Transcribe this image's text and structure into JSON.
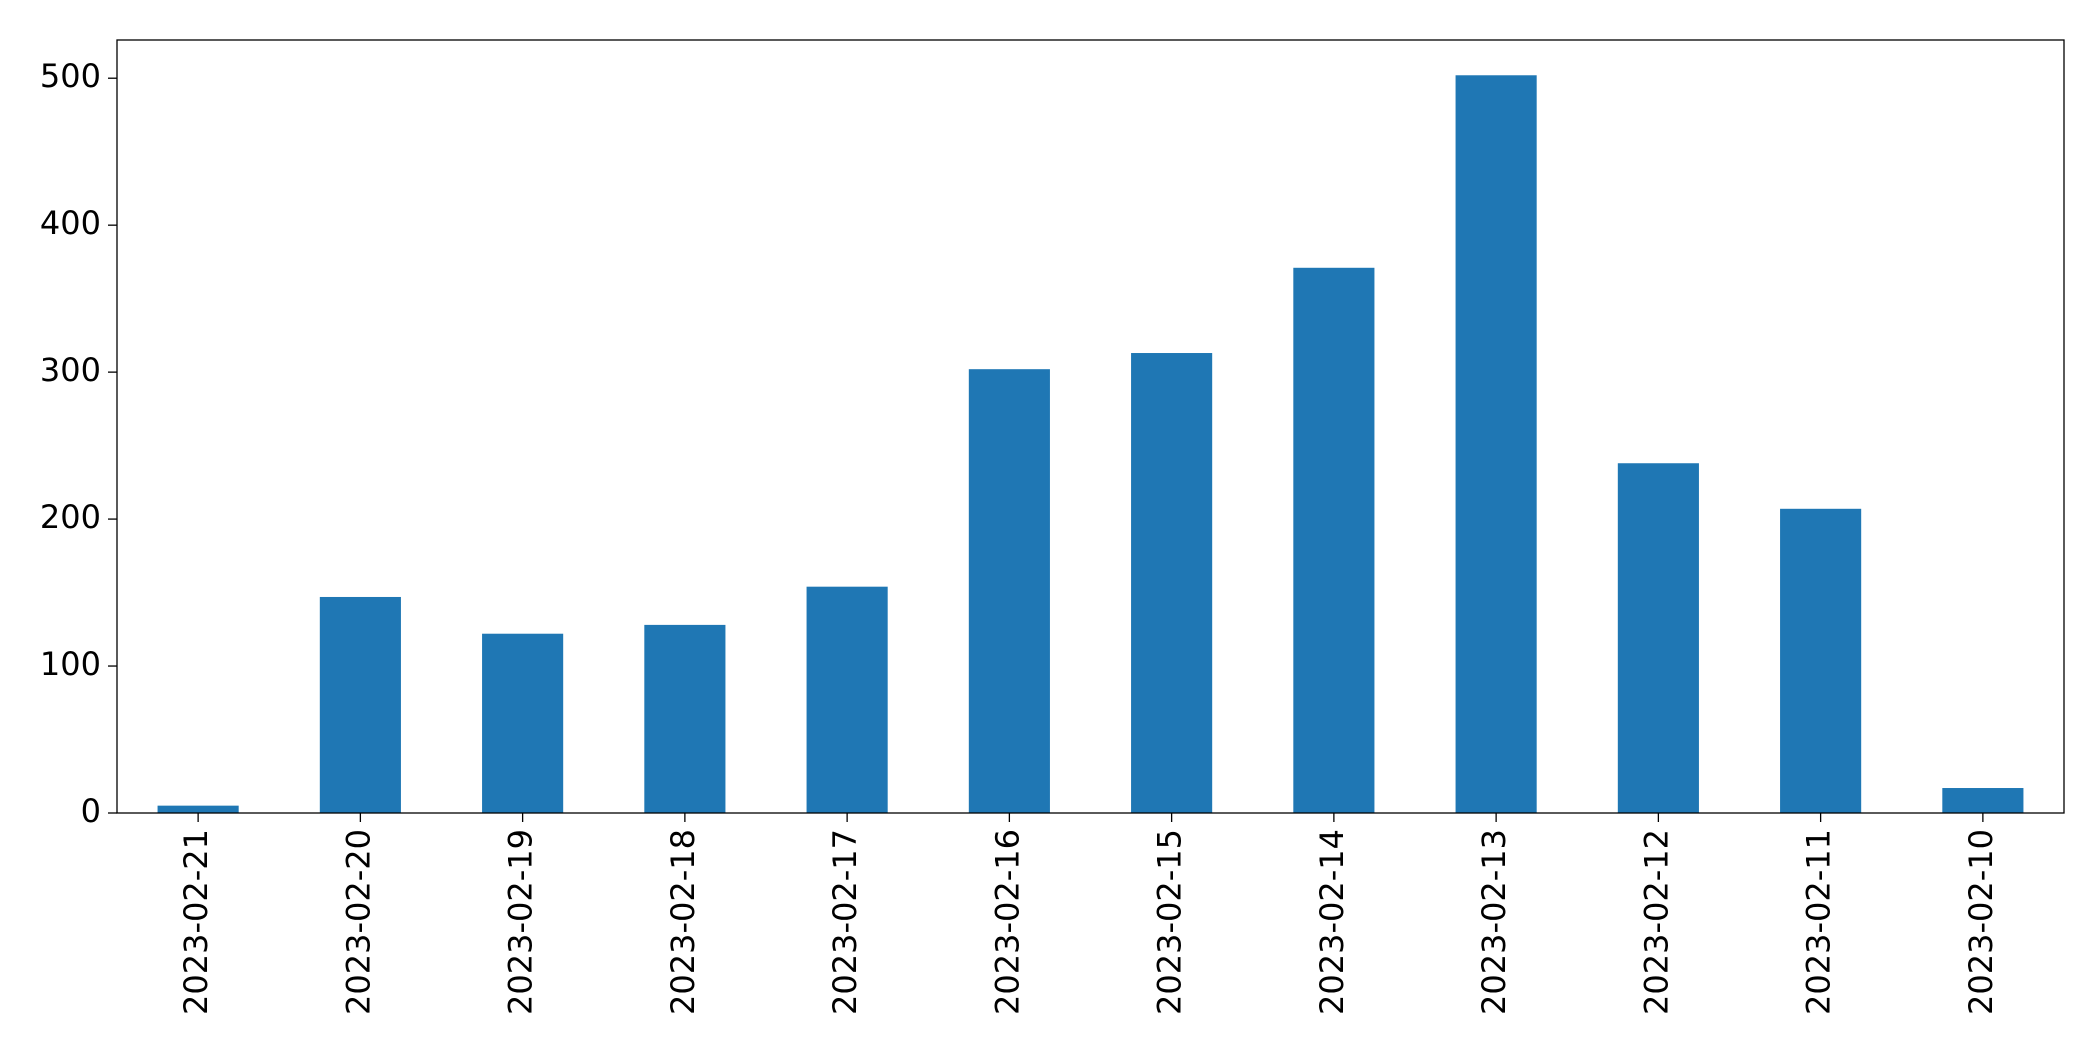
{
  "chart_data": {
    "type": "bar",
    "categories": [
      "2023-02-21",
      "2023-02-20",
      "2023-02-19",
      "2023-02-18",
      "2023-02-17",
      "2023-02-16",
      "2023-02-15",
      "2023-02-14",
      "2023-02-13",
      "2023-02-12",
      "2023-02-11",
      "2023-02-10"
    ],
    "values": [
      5,
      147,
      122,
      128,
      154,
      302,
      313,
      371,
      502,
      238,
      207,
      17
    ],
    "color": "#1f77b4",
    "ylim": [
      0,
      526
    ],
    "yticks": [
      0,
      100,
      200,
      300,
      400,
      500
    ],
    "grid": false
  }
}
